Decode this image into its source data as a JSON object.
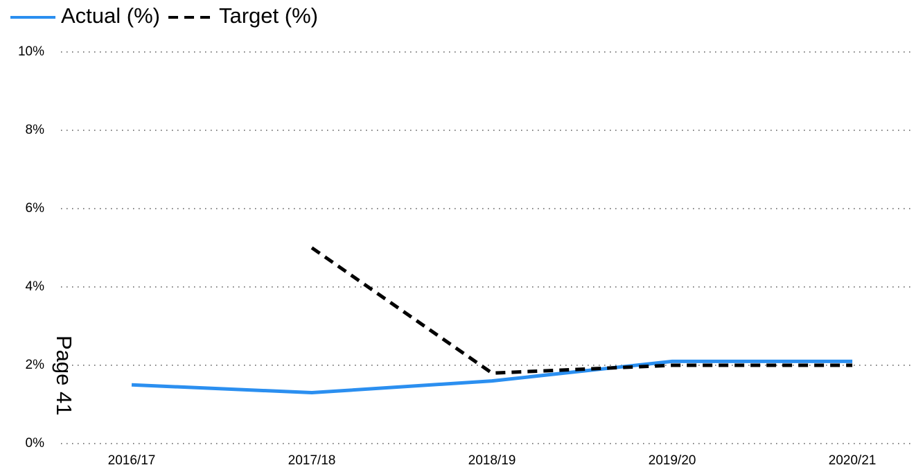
{
  "chart_data": {
    "type": "line",
    "categories": [
      "2016/17",
      "2017/18",
      "2018/19",
      "2019/20",
      "2020/21"
    ],
    "series": [
      {
        "name": "Actual (%)",
        "color": "#2b8ff0",
        "dash": false,
        "values": [
          1.5,
          1.3,
          1.6,
          2.1,
          2.1
        ]
      },
      {
        "name": "Target (%)",
        "color": "#000000",
        "dash": true,
        "values": [
          null,
          5.0,
          1.8,
          2.0,
          2.0
        ]
      }
    ],
    "ylim": [
      0,
      10
    ],
    "yticks": [
      {
        "value": 0,
        "label": "0%"
      },
      {
        "value": 2,
        "label": "2%"
      },
      {
        "value": 4,
        "label": "4%"
      },
      {
        "value": 6,
        "label": "6%"
      },
      {
        "value": 8,
        "label": "8%"
      },
      {
        "value": 10,
        "label": "10%"
      }
    ],
    "grid": true,
    "legend": "top-left",
    "annotation": "Page 41"
  }
}
